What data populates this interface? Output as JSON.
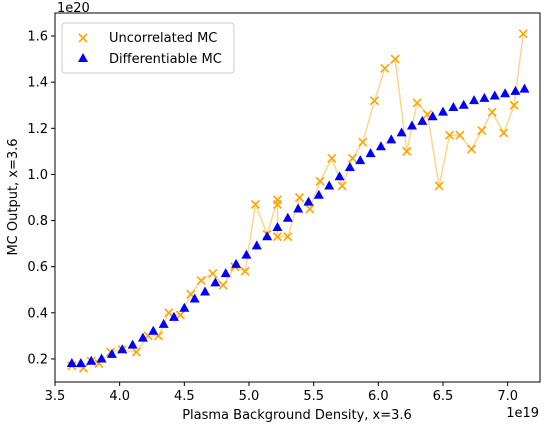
{
  "chart_data": {
    "type": "scatter",
    "title": "",
    "xlabel": "Plasma Background Density, x=3.6",
    "ylabel": "MC Output, x=3.6",
    "x_offset_label": "1e19",
    "y_offset_label": "1e20",
    "xlim": [
      3.5,
      7.25
    ],
    "ylim": [
      0.1,
      1.7
    ],
    "xticks": [
      "3.5",
      "4.0",
      "4.5",
      "5.0",
      "5.5",
      "6.0",
      "6.5",
      "7.0"
    ],
    "yticks": [
      "0.2",
      "0.4",
      "0.6",
      "0.8",
      "1.0",
      "1.2",
      "1.4",
      "1.6"
    ],
    "grid": false,
    "legend_position": "upper-left",
    "series": [
      {
        "name": "Uncorrelated MC",
        "marker": "x",
        "color": "#FFA500",
        "line_color": "#FFD58A",
        "x": [
          3.63,
          3.72,
          3.78,
          3.84,
          3.93,
          4.02,
          4.13,
          4.22,
          4.3,
          4.38,
          4.47,
          4.55,
          4.63,
          4.72,
          4.8,
          4.89,
          4.97,
          5.05,
          5.14,
          5.22,
          5.22,
          5.22,
          5.3,
          5.39,
          5.47,
          5.55,
          5.64,
          5.72,
          5.8,
          5.88,
          5.97,
          6.05,
          6.13,
          6.22,
          6.3,
          6.38,
          6.47,
          6.55,
          6.63,
          6.72,
          6.8,
          6.88,
          6.97,
          7.05,
          7.12
        ],
        "y": [
          0.17,
          0.16,
          0.19,
          0.18,
          0.23,
          0.24,
          0.23,
          0.3,
          0.3,
          0.4,
          0.39,
          0.48,
          0.54,
          0.57,
          0.52,
          0.6,
          0.58,
          0.87,
          0.74,
          0.89,
          0.87,
          0.73,
          0.73,
          0.9,
          0.85,
          0.97,
          1.07,
          0.95,
          1.07,
          1.14,
          1.32,
          1.46,
          1.5,
          1.1,
          1.31,
          1.26,
          0.95,
          1.17,
          1.17,
          1.11,
          1.19,
          1.27,
          1.18,
          1.3,
          1.61
        ]
      },
      {
        "name": "Differentiable MC",
        "marker": "triangle",
        "color": "#0000FF",
        "x": [
          3.63,
          3.7,
          3.78,
          3.86,
          3.94,
          4.02,
          4.1,
          4.18,
          4.26,
          4.34,
          4.42,
          4.5,
          4.58,
          4.66,
          4.74,
          4.82,
          4.9,
          4.98,
          5.06,
          5.14,
          5.22,
          5.3,
          5.38,
          5.46,
          5.54,
          5.62,
          5.7,
          5.78,
          5.86,
          5.94,
          6.02,
          6.1,
          6.18,
          6.26,
          6.34,
          6.42,
          6.5,
          6.58,
          6.66,
          6.74,
          6.82,
          6.9,
          6.98,
          7.06,
          7.13
        ],
        "y": [
          0.18,
          0.18,
          0.19,
          0.2,
          0.22,
          0.24,
          0.26,
          0.29,
          0.32,
          0.35,
          0.38,
          0.42,
          0.46,
          0.49,
          0.53,
          0.57,
          0.61,
          0.65,
          0.69,
          0.73,
          0.77,
          0.81,
          0.85,
          0.88,
          0.91,
          0.95,
          0.99,
          1.03,
          1.06,
          1.09,
          1.12,
          1.15,
          1.18,
          1.21,
          1.23,
          1.25,
          1.27,
          1.29,
          1.3,
          1.32,
          1.33,
          1.34,
          1.35,
          1.36,
          1.37
        ]
      }
    ]
  }
}
